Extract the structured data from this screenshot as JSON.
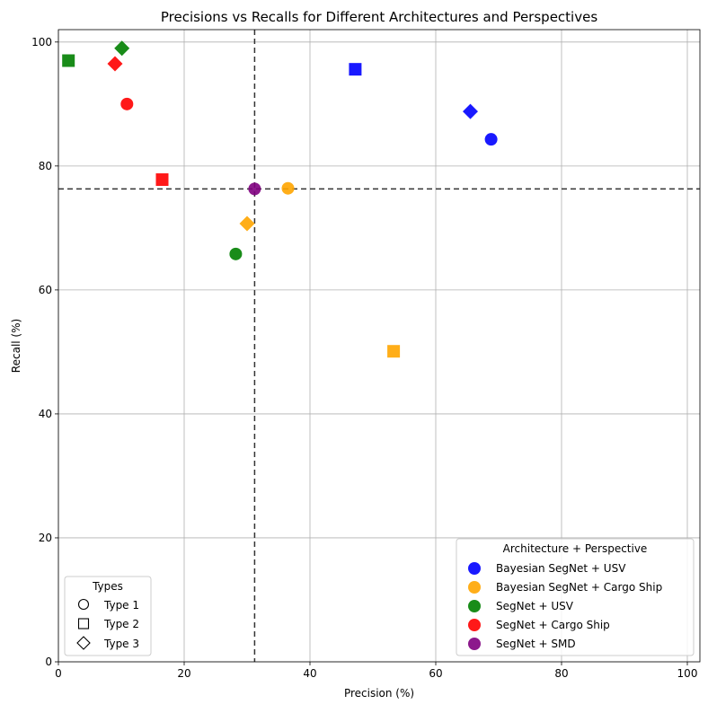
{
  "chart_data": {
    "type": "scatter",
    "title": "Precisions vs Recalls for Different Architectures and Perspectives",
    "xlabel": "Precision (%)",
    "ylabel": "Recall (%)",
    "xlim": [
      0,
      102
    ],
    "ylim": [
      0,
      102
    ],
    "xticks": [
      0,
      20,
      40,
      60,
      80,
      100
    ],
    "yticks": [
      0,
      20,
      40,
      60,
      80,
      100
    ],
    "grid": true,
    "reference_lines": {
      "vertical_x": 31.2,
      "horizontal_y": 76.3,
      "style": "dashed"
    },
    "series": [
      {
        "name": "Bayesian SegNet + USV",
        "color": "#0000ff",
        "points": [
          {
            "x": 68.8,
            "y": 84.3,
            "type": "Type 1"
          },
          {
            "x": 47.2,
            "y": 95.6,
            "type": "Type 2"
          },
          {
            "x": 65.5,
            "y": 88.8,
            "type": "Type 3"
          }
        ]
      },
      {
        "name": "Bayesian SegNet + Cargo Ship",
        "color": "#ffa500",
        "points": [
          {
            "x": 36.5,
            "y": 76.4,
            "type": "Type 1"
          },
          {
            "x": 53.3,
            "y": 50.1,
            "type": "Type 2"
          },
          {
            "x": 30.0,
            "y": 70.7,
            "type": "Type 3"
          }
        ]
      },
      {
        "name": "SegNet + USV",
        "color": "#008000",
        "points": [
          {
            "x": 28.2,
            "y": 65.8,
            "type": "Type 1"
          },
          {
            "x": 1.6,
            "y": 97.0,
            "type": "Type 2"
          },
          {
            "x": 10.1,
            "y": 99.0,
            "type": "Type 3"
          }
        ]
      },
      {
        "name": "SegNet + Cargo Ship",
        "color": "#ff0000",
        "points": [
          {
            "x": 10.9,
            "y": 90.0,
            "type": "Type 1"
          },
          {
            "x": 16.5,
            "y": 77.8,
            "type": "Type 2"
          },
          {
            "x": 9.0,
            "y": 96.5,
            "type": "Type 3"
          }
        ]
      },
      {
        "name": "SegNet + SMD",
        "color": "#800080",
        "points": [
          {
            "x": 31.2,
            "y": 76.3,
            "type": "Type 1"
          }
        ]
      }
    ],
    "legend_series": {
      "title": "Architecture + Perspective",
      "placement": "bottom-right"
    },
    "legend_types": {
      "title": "Types",
      "placement": "bottom-left",
      "entries": [
        {
          "label": "Type 1",
          "marker": "circle"
        },
        {
          "label": "Type 2",
          "marker": "square"
        },
        {
          "label": "Type 3",
          "marker": "diamond"
        }
      ]
    }
  }
}
